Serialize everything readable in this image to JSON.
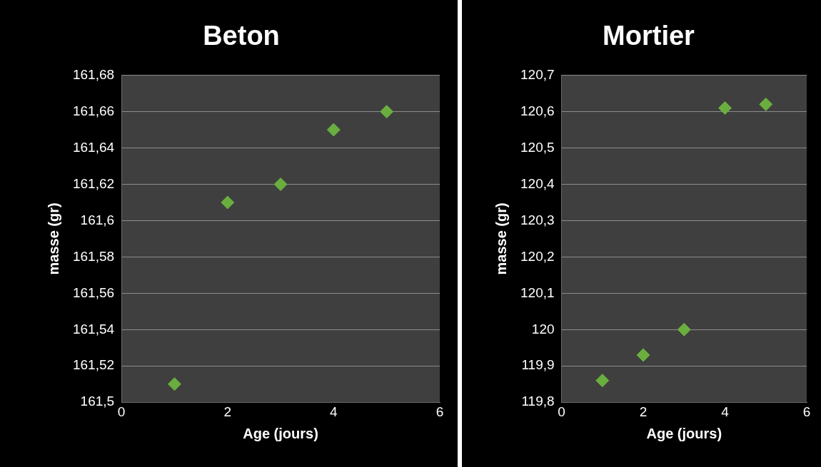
{
  "chart_data": [
    {
      "type": "scatter",
      "title": "Beton",
      "xlabel": "Age (jours)",
      "ylabel": "masse (gr)",
      "x": [
        1,
        2,
        3,
        4,
        5
      ],
      "series": [
        {
          "color": "#6aae3f",
          "values": [
            161.51,
            161.61,
            161.62,
            161.65,
            161.66
          ]
        }
      ],
      "xlim": [
        0,
        6
      ],
      "xticks": [
        0,
        2,
        4,
        6
      ],
      "ylim": [
        161.5,
        161.68
      ],
      "yticks": [
        {
          "value": 161.5,
          "label": "161,5"
        },
        {
          "value": 161.52,
          "label": "161,52"
        },
        {
          "value": 161.54,
          "label": "161,54"
        },
        {
          "value": 161.56,
          "label": "161,56"
        },
        {
          "value": 161.58,
          "label": "161,58"
        },
        {
          "value": 161.6,
          "label": "161,6"
        },
        {
          "value": 161.62,
          "label": "161,62"
        },
        {
          "value": 161.64,
          "label": "161,64"
        },
        {
          "value": 161.66,
          "label": "161,66"
        },
        {
          "value": 161.68,
          "label": "161,68"
        }
      ],
      "grid": "y",
      "legend": false,
      "marker": "diamond"
    },
    {
      "type": "scatter",
      "title": "Mortier",
      "xlabel": "Age (jours)",
      "ylabel": "masse (gr)",
      "x": [
        1,
        2,
        3,
        4,
        5
      ],
      "series": [
        {
          "color": "#6aae3f",
          "values": [
            119.86,
            119.93,
            120.0,
            120.61,
            120.62
          ]
        }
      ],
      "xlim": [
        0,
        6
      ],
      "xticks": [
        0,
        2,
        4,
        6
      ],
      "ylim": [
        119.8,
        120.7
      ],
      "yticks": [
        {
          "value": 119.8,
          "label": "119,8"
        },
        {
          "value": 119.9,
          "label": "119,9"
        },
        {
          "value": 120,
          "label": "120"
        },
        {
          "value": 120.1,
          "label": "120,1"
        },
        {
          "value": 120.2,
          "label": "120,2"
        },
        {
          "value": 120.3,
          "label": "120,3"
        },
        {
          "value": 120.4,
          "label": "120,4"
        },
        {
          "value": 120.5,
          "label": "120,5"
        },
        {
          "value": 120.6,
          "label": "120,6"
        },
        {
          "value": 120.7,
          "label": "120,7"
        }
      ],
      "grid": "y",
      "legend": false,
      "marker": "diamond"
    }
  ]
}
